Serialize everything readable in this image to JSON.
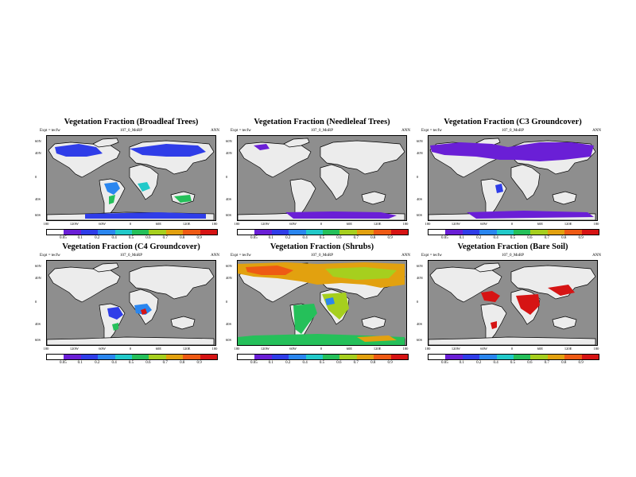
{
  "colors": {
    "ocean": "#8e8e8e",
    "land": "#ececec",
    "palette": [
      "#ffffff",
      "#6a1fd6",
      "#2f3de8",
      "#2a86ef",
      "#22c9c9",
      "#25c05a",
      "#a6cf1e",
      "#e2a10f",
      "#ee5a14",
      "#d61414"
    ]
  },
  "lat_labels": [
    "60N",
    "40N",
    "0",
    "40S",
    "60S"
  ],
  "lon_labels": [
    "180",
    "120W",
    "60W",
    "0",
    "60E",
    "120E",
    "180"
  ],
  "panels": [
    {
      "title": "Vegetation Fraction (Broadleaf Trees)",
      "expt": "Expt = tecfw",
      "subtitle": "107_0_MoRP",
      "period": "ANN",
      "colorbar_labels": [
        "0.05",
        "0.1",
        "0.2",
        "0.4",
        "0.5",
        "0.6",
        "0.7",
        "0.8",
        "0.9"
      ],
      "dominant": "broadleaf"
    },
    {
      "title": "Vegetation Fraction (Needleleaf Trees)",
      "expt": "Expt = tecfw",
      "subtitle": "107_0_MoRP",
      "period": "ANN",
      "colorbar_labels": [
        "0.05",
        "0.1",
        "0.2",
        "0.4",
        "0.5",
        "0.6",
        "0.7",
        "0.8",
        "0.9"
      ],
      "dominant": "needleleaf"
    },
    {
      "title": "Vegetation Fraction (C3 Groundcover)",
      "expt": "Expt = tecfw",
      "subtitle": "107_0_MoRP",
      "period": "ANN",
      "colorbar_labels": [
        "0.05",
        "0.1",
        "0.2",
        "0.4",
        "0.5",
        "0.6",
        "0.7",
        "0.8",
        "0.9"
      ],
      "dominant": "c3"
    },
    {
      "title": "Vegetation Fraction (C4 Groundcover)",
      "expt": "Expt = tecfw",
      "subtitle": "107_0_MoRP",
      "period": "ANN",
      "colorbar_labels": [
        "0.05",
        "0.1",
        "0.2",
        "0.4",
        "0.5",
        "0.6",
        "0.7",
        "0.8",
        "0.9"
      ],
      "dominant": "c4"
    },
    {
      "title": "Vegetation Fraction (Shrubs)",
      "expt": "Expt = tecfw",
      "subtitle": "107_0_MoRP",
      "period": "ANN",
      "colorbar_labels": [
        "0.05",
        "0.1",
        "0.2",
        "0.4",
        "0.5",
        "0.6",
        "0.7",
        "0.8",
        "0.9"
      ],
      "dominant": "shrubs"
    },
    {
      "title": "Vegetation Fraction (Bare Soil)",
      "expt": "Expt = tecfw",
      "subtitle": "107_0_MoRP",
      "period": "ANN",
      "colorbar_labels": [
        "0.05",
        "0.1",
        "0.2",
        "0.4",
        "0.5",
        "0.6",
        "0.7",
        "0.8",
        "0.9"
      ],
      "dominant": "bare"
    }
  ]
}
